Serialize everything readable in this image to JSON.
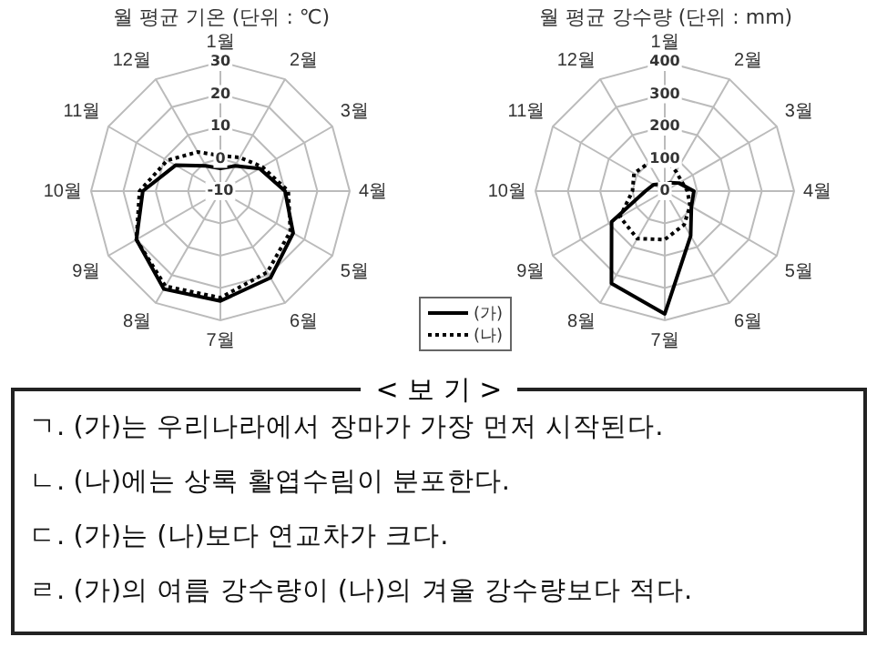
{
  "chart_data": [
    {
      "type": "radar",
      "title": "월 평균 기온 (단위 : ℃)",
      "categories": [
        "1월",
        "2월",
        "3월",
        "4월",
        "5월",
        "6월",
        "7월",
        "8월",
        "9월",
        "10월",
        "11월",
        "12월"
      ],
      "ylim": [
        -10,
        30
      ],
      "yticks": [
        -10,
        0,
        10,
        20,
        30
      ],
      "grid": true,
      "legend": "bottom right",
      "marker": "none",
      "series": [
        {
          "name": "(가)",
          "color": "#000000",
          "line_style": "solid",
          "values": [
            -3,
            -1,
            4,
            10,
            16,
            21,
            24,
            25,
            20,
            14,
            6,
            -1
          ]
        },
        {
          "name": "(나)",
          "color": "#000000",
          "line_style": "dotted",
          "values": [
            1,
            2,
            5,
            11,
            15,
            19,
            23,
            24,
            20,
            15,
            9,
            4
          ]
        }
      ]
    },
    {
      "type": "radar",
      "title": "월 평균 강수량 (단위 : mm)",
      "categories": [
        "1월",
        "2월",
        "3월",
        "4월",
        "5월",
        "6월",
        "7월",
        "8월",
        "9월",
        "10월",
        "11월",
        "12월"
      ],
      "ylim": [
        0,
        400
      ],
      "yticks": [
        0,
        100,
        200,
        300,
        400
      ],
      "grid": true,
      "legend": false,
      "marker": "none",
      "series": [
        {
          "color": "#000000",
          "line_style": "solid",
          "values": [
            20,
            30,
            50,
            90,
            95,
            160,
            380,
            330,
            190,
            60,
            40,
            25
          ]
        },
        {
          "color": "#000000",
          "line_style": "dotted",
          "values": [
            100,
            70,
            60,
            70,
            90,
            120,
            150,
            170,
            160,
            100,
            110,
            100
          ]
        }
      ]
    },
    {
      "type": "other",
      "title": "< 보 기 >",
      "annotations": [
        "ㄱ. (가)는 우리나라에서 장마가 가장 먼저 시작된다.",
        "ㄴ. (나)에는 상록 활엽수림이 분포한다.",
        "ㄷ. (가)는 (나)보다 연교차가 크다.",
        "ㄹ. (가)의 여름 강수량이 (나)의 겨울 강수량보다 적다."
      ]
    }
  ]
}
